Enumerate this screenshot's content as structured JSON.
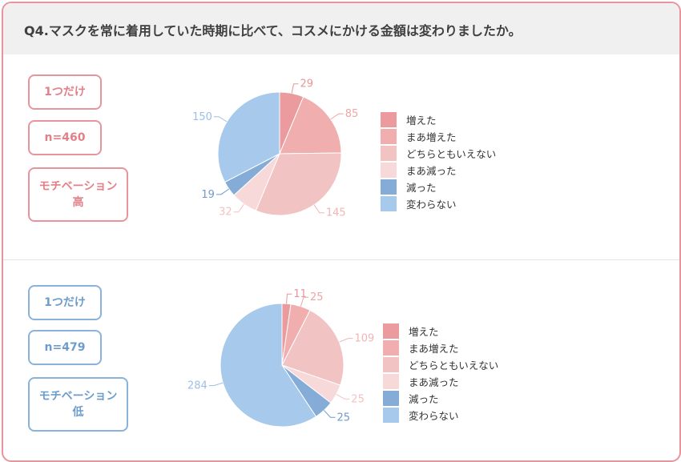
{
  "header": {
    "title": "Q4.マスクを常に着用していた時期に比べて、コスメにかける金額は変わりましたか。"
  },
  "panels": [
    {
      "badges": [
        "1つだけ",
        "n=460",
        "モチベーション\n高"
      ]
    },
    {
      "badges": [
        "1つだけ",
        "n=479",
        "モチベーション\n低"
      ]
    }
  ],
  "colors": {
    "red_border": "#e7959c",
    "blue_border": "#89b3db",
    "slices": [
      "#eb9a9e",
      "#f0aeae",
      "#f2c3c3",
      "#f8d9d9",
      "#84acd6",
      "#a7c9ec"
    ]
  },
  "chart_data": [
    {
      "type": "pie",
      "categories": [
        "増えた",
        "まあ増えた",
        "どちらともいえない",
        "まあ減った",
        "減った",
        "変わらない"
      ],
      "values": [
        29,
        85,
        145,
        32,
        19,
        150
      ],
      "legend": "right"
    },
    {
      "type": "pie",
      "categories": [
        "増えた",
        "まあ増えた",
        "どちらともいえない",
        "まあ減った",
        "減った",
        "変わらない"
      ],
      "values": [
        11,
        25,
        109,
        25,
        25,
        284
      ],
      "legend": "right"
    }
  ]
}
